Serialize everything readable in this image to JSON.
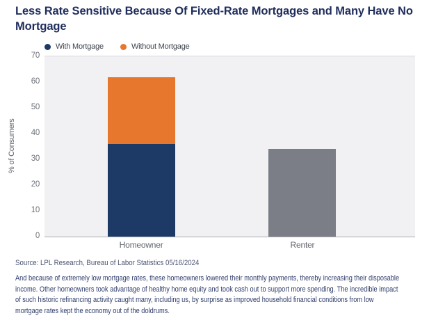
{
  "page": {
    "title": "Less Rate Sensitive Because Of Fixed-Rate Mortgages and Many Have No Mortgage",
    "source": "Source: LPL Research, Bureau of Labor Statistics 05/16/2024",
    "commentary": "And because of extremely low mortgage rates, these homeowners lowered their monthly payments, thereby increasing their disposable income. Other homeowners took advantage of healthy home equity and took cash out to support more spending. The incredible impact of such historic refinancing activity caught many, including us, by surprise as improved household financial conditions from low mortgage rates kept the economy out of the doldrums."
  },
  "colors": {
    "title_navy": "#1f2d5c",
    "with_mortgage_navy": "#1d3a66",
    "without_mortgage_orange": "#e6772c",
    "renter_gray": "#7b7e87",
    "plot_background": "#f1f1f4",
    "axis_line": "#a9acb3"
  },
  "chart_data": {
    "type": "bar",
    "stacked": true,
    "title": "",
    "xlabel": "",
    "ylabel": "% of Consumers",
    "ylim": [
      0,
      70
    ],
    "yticks": [
      0,
      10,
      20,
      30,
      40,
      50,
      60,
      70
    ],
    "grid": false,
    "legend_position": "top-left",
    "plot_background": "#f1f1f4",
    "categories": [
      "Homeowner",
      "Renter"
    ],
    "series": [
      {
        "name": "With Mortgage",
        "key": "with-mortgage",
        "color": "#1d3a66",
        "in_legend": true,
        "values": [
          36,
          null
        ]
      },
      {
        "name": "Without Mortgage",
        "key": "without-mortgage",
        "color": "#e6772c",
        "in_legend": true,
        "values": [
          26,
          null
        ]
      },
      {
        "name": "Renter",
        "key": "renter",
        "color": "#7b7e87",
        "in_legend": false,
        "values": [
          null,
          34
        ]
      }
    ],
    "stack_totals": {
      "Homeowner": 62,
      "Renter": 34
    }
  }
}
